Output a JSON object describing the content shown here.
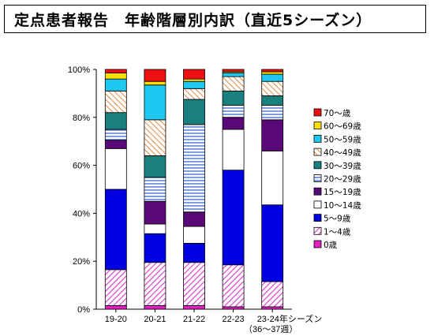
{
  "title": "定点患者報告　年齢階層別内訳（直近5シーズン）",
  "chart_data": {
    "type": "bar",
    "stacked": true,
    "percent": true,
    "categories": [
      "19-20",
      "20-21",
      "21-22",
      "22-23",
      "23-24"
    ],
    "category_suffix": "年シーズン",
    "category_note": "（36～37週）",
    "ylim": [
      0,
      100
    ],
    "yticks": [
      "0%",
      "20%",
      "40%",
      "60%",
      "80%",
      "100%"
    ],
    "grid": false,
    "legend_position": "right",
    "series": [
      {
        "name": "0歳",
        "color": "#e020c0",
        "pattern": "solid",
        "values": [
          1.5,
          1.5,
          1.5,
          1.0,
          1.0
        ]
      },
      {
        "name": "1～4歳",
        "color": "#e040d0",
        "pattern": "diag",
        "values": [
          15,
          18,
          18,
          17.5,
          10.5
        ]
      },
      {
        "name": "5～9歳",
        "color": "#0000e0",
        "pattern": "solid",
        "values": [
          33.5,
          12,
          8,
          39.5,
          32
        ]
      },
      {
        "name": "10～14歳",
        "color": "#ffffff",
        "pattern": "solid",
        "values": [
          17,
          4,
          7,
          17,
          22.5
        ]
      },
      {
        "name": "15～19歳",
        "color": "#5a0a78",
        "pattern": "solid",
        "values": [
          3.5,
          9.5,
          6,
          5,
          13
        ]
      },
      {
        "name": "20～29歳",
        "color": "#5b86d6",
        "pattern": "hlines",
        "values": [
          4.5,
          10,
          36.5,
          5,
          6
        ]
      },
      {
        "name": "30～39歳",
        "color": "#1a7f7f",
        "pattern": "solid",
        "values": [
          7,
          9,
          10.5,
          6,
          4
        ]
      },
      {
        "name": "40～49歳",
        "color": "#e08a40",
        "pattern": "diag2",
        "values": [
          9,
          15,
          4.5,
          6,
          6
        ]
      },
      {
        "name": "50～59歳",
        "color": "#1ec8f0",
        "pattern": "solid",
        "values": [
          5,
          14.5,
          3,
          1.5,
          3
        ]
      },
      {
        "name": "60～69歳",
        "color": "#ffe000",
        "pattern": "solid",
        "values": [
          2.5,
          1.5,
          1,
          0.5,
          1
        ]
      },
      {
        "name": "70～歳",
        "color": "#ee1010",
        "pattern": "solid",
        "values": [
          1.5,
          5,
          4,
          1,
          1
        ]
      }
    ]
  }
}
